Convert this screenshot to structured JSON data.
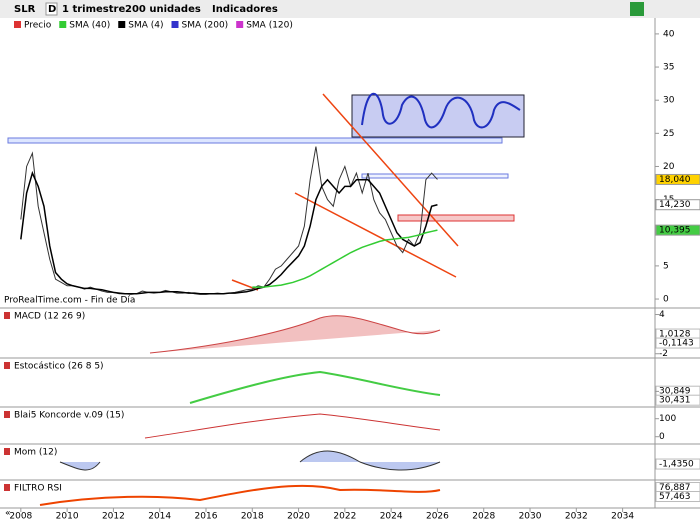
{
  "toolbar": {
    "symbol": "SLR",
    "mode": "D",
    "period": "1 trimestre",
    "units": "200 unidades",
    "indicators": "Indicadores"
  },
  "legend": [
    "Precio",
    "SMA (40)",
    "SMA (4)",
    "SMA (200)",
    "SMA (120)"
  ],
  "source": "ProRealTime.com - Fin de Día",
  "chart_data": {
    "type": "line",
    "x": [
      2008,
      2008.25,
      2008.5,
      2008.75,
      2009,
      2009.25,
      2009.5,
      2009.75,
      2010,
      2010.25,
      2010.5,
      2010.75,
      2011,
      2011.25,
      2011.5,
      2011.75,
      2012,
      2012.25,
      2012.5,
      2012.75,
      2013,
      2013.25,
      2013.5,
      2013.75,
      2014,
      2014.25,
      2014.5,
      2014.75,
      2015,
      2015.25,
      2015.5,
      2015.75,
      2016,
      2016.25,
      2016.5,
      2016.75,
      2017,
      2017.25,
      2017.5,
      2017.75,
      2018,
      2018.25,
      2018.5,
      2018.75,
      2019,
      2019.25,
      2019.5,
      2019.75,
      2020,
      2020.25,
      2020.5,
      2020.75,
      2021,
      2021.25,
      2021.5,
      2021.75,
      2022,
      2022.25,
      2022.5,
      2022.75,
      2023,
      2023.25,
      2023.5,
      2023.75,
      2024,
      2024.25,
      2024.5,
      2024.75,
      2025,
      2025.25,
      2025.5,
      2025.75,
      2026
    ],
    "series": [
      {
        "name": "Precio",
        "color": "#333333",
        "values": [
          12,
          20,
          22,
          14,
          10,
          6,
          3,
          2.5,
          2,
          2,
          1.8,
          1.5,
          1.8,
          1.5,
          1.2,
          1,
          1,
          0.8,
          0.8,
          0.7,
          0.8,
          1.2,
          1,
          0.9,
          1,
          1.3,
          1.1,
          0.9,
          0.9,
          1,
          0.8,
          0.7,
          0.7,
          0.8,
          0.9,
          0.8,
          0.9,
          1,
          1.2,
          1.4,
          1.5,
          2,
          1.8,
          3,
          4.5,
          5,
          6,
          7,
          8,
          11,
          18,
          23,
          17,
          15,
          14,
          18,
          20,
          17,
          19,
          16,
          19,
          15,
          13,
          12,
          10,
          8,
          7,
          9,
          8,
          10,
          18,
          19,
          18.04
        ]
      },
      {
        "name": "SMA (4)",
        "color": "#000000",
        "values": [
          9,
          16,
          19,
          17,
          14,
          8,
          4,
          3,
          2.3,
          2,
          1.8,
          1.6,
          1.6,
          1.5,
          1.4,
          1.2,
          1,
          0.9,
          0.8,
          0.8,
          0.8,
          0.9,
          1,
          1,
          1,
          1.1,
          1.1,
          1.1,
          1,
          0.9,
          0.9,
          0.8,
          0.8,
          0.8,
          0.8,
          0.8,
          0.9,
          0.9,
          1,
          1.1,
          1.3,
          1.6,
          1.8,
          2.2,
          2.9,
          3.7,
          4.7,
          5.6,
          6.5,
          8,
          11,
          15,
          17,
          18,
          17,
          16,
          17,
          17,
          18,
          18,
          18,
          17,
          16,
          14,
          12,
          10,
          9,
          8.5,
          8,
          8.5,
          11,
          14,
          14.23
        ]
      },
      {
        "name": "SMA (40)",
        "color": "#33cc33",
        "values": [
          null,
          null,
          null,
          null,
          null,
          null,
          null,
          null,
          null,
          null,
          null,
          null,
          null,
          null,
          null,
          null,
          null,
          null,
          null,
          null,
          null,
          null,
          null,
          null,
          null,
          null,
          null,
          null,
          null,
          null,
          null,
          null,
          null,
          null,
          null,
          null,
          null,
          null,
          null,
          null,
          1.8,
          1.8,
          1.8,
          1.9,
          2,
          2.1,
          2.3,
          2.5,
          2.8,
          3.1,
          3.5,
          4,
          4.5,
          5,
          5.5,
          6,
          6.5,
          7,
          7.4,
          7.8,
          8.1,
          8.4,
          8.7,
          8.9,
          9,
          9.1,
          9.2,
          9.3,
          9.5,
          9.7,
          10,
          10.2,
          10.395
        ]
      }
    ],
    "xlim": [
      2007.1,
      2035.4
    ],
    "xticks": [
      2008,
      2010,
      2012,
      2014,
      2016,
      2018,
      2020,
      2022,
      2024,
      2026,
      2028,
      2030,
      2032,
      2034
    ],
    "ylim": [
      -0.9,
      42.4
    ],
    "yticks": [
      0,
      5,
      10,
      15,
      20,
      25,
      30,
      35,
      40
    ],
    "price_labels": [
      {
        "value": 18.04,
        "label": "18,040"
      },
      {
        "value": 14.23,
        "label": "14,230"
      },
      {
        "value": 10.395,
        "label": "10,395"
      }
    ]
  },
  "panels": [
    {
      "label": "MACD (12 26 9)",
      "ylim": [
        -2.5,
        5
      ],
      "ticks": [
        4,
        {
          "value": 1.0128,
          "label": "1,0128"
        },
        {
          "value": -0.1143,
          "label": "-0,1143"
        },
        -2
      ]
    },
    {
      "label": "Estocástico (26 8 5)",
      "ylim": [
        0,
        100
      ],
      "ticks": [
        {
          "value": 30.849,
          "label": "30,849"
        },
        {
          "value": 30.431,
          "label": "30,431"
        }
      ]
    },
    {
      "label": "Blai5 Koncorde v.09 (15)",
      "ylim": [
        -35,
        165
      ],
      "ticks": [
        100,
        0
      ]
    },
    {
      "label": "Mom (12)",
      "ylim": [
        -4,
        2
      ],
      "ticks": [
        {
          "value": -1.435,
          "label": "-1,4350"
        }
      ]
    },
    {
      "label": "FILTRO RSI",
      "ylim": [
        30,
        95
      ],
      "ticks": [
        {
          "value": 76.887,
          "label": "76,887"
        },
        {
          "value": 57.463,
          "label": "57,463"
        }
      ]
    }
  ]
}
